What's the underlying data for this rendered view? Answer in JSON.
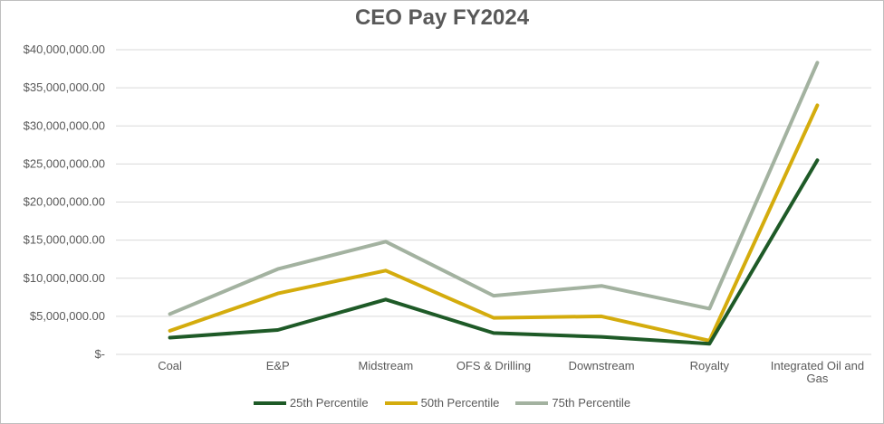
{
  "chart_data": {
    "type": "line",
    "title": "CEO Pay FY2024",
    "xlabel": "",
    "ylabel": "",
    "ylim": [
      0,
      40000000
    ],
    "yticks": [
      {
        "value": 0,
        "label": "$-"
      },
      {
        "value": 5000000,
        "label": "$5,000,000.00"
      },
      {
        "value": 10000000,
        "label": "$10,000,000.00"
      },
      {
        "value": 15000000,
        "label": "$15,000,000.00"
      },
      {
        "value": 20000000,
        "label": "$20,000,000.00"
      },
      {
        "value": 25000000,
        "label": "$25,000,000.00"
      },
      {
        "value": 30000000,
        "label": "$30,000,000.00"
      },
      {
        "value": 35000000,
        "label": "$35,000,000.00"
      },
      {
        "value": 40000000,
        "label": "$40,000,000.00"
      }
    ],
    "categories": [
      "Coal",
      "E&P",
      "Midstream",
      "OFS & Drilling",
      "Downstream",
      "Royalty",
      "Integrated Oil and Gas"
    ],
    "category_lines": [
      [
        "Coal"
      ],
      [
        "E&P"
      ],
      [
        "Midstream"
      ],
      [
        "OFS & Drilling"
      ],
      [
        "Downstream"
      ],
      [
        "Royalty"
      ],
      [
        "Integrated Oil and",
        "Gas"
      ]
    ],
    "series": [
      {
        "name": "25th Percentile",
        "color": "#1e5a27",
        "values": [
          2200000,
          3200000,
          7200000,
          2800000,
          2300000,
          1400000,
          25500000
        ]
      },
      {
        "name": "50th Percentile",
        "color": "#d4ac0d",
        "values": [
          3100000,
          8000000,
          11000000,
          4800000,
          5000000,
          1800000,
          32700000
        ]
      },
      {
        "name": "75th Percentile",
        "color": "#a3b2a0",
        "values": [
          5300000,
          11200000,
          14800000,
          7700000,
          9000000,
          6000000,
          38300000
        ]
      }
    ],
    "grid": true,
    "legend_position": "bottom"
  }
}
